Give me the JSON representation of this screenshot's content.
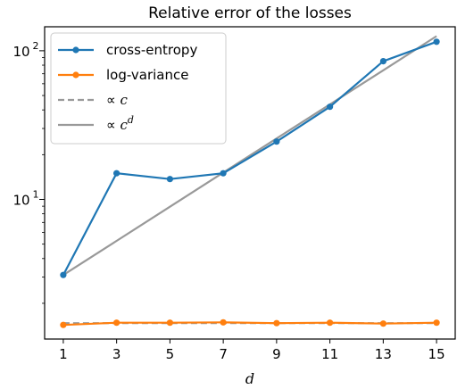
{
  "chart_data": {
    "type": "line",
    "title": "Relative error of the losses",
    "xlabel": "d",
    "ylabel": "",
    "x": [
      1,
      3,
      5,
      7,
      9,
      11,
      13,
      15
    ],
    "xticks": [
      "1",
      "3",
      "5",
      "7",
      "9",
      "11",
      "13",
      "15"
    ],
    "yscale": "log",
    "ylim": [
      1.15,
      145
    ],
    "yticks": [
      {
        "base": "10",
        "exp": "1",
        "value": 10
      },
      {
        "base": "10",
        "exp": "2",
        "value": 100
      }
    ],
    "grid": false,
    "legend_position": "top-left",
    "series": [
      {
        "name": "cross-entropy",
        "color": "#1f77b4",
        "style": "solid-markers",
        "values": [
          3.1,
          15.0,
          13.7,
          15.0,
          24.5,
          42.0,
          85.0,
          115.0
        ]
      },
      {
        "name": "log-variance",
        "color": "#ff7f0e",
        "style": "solid-markers",
        "values": [
          1.43,
          1.48,
          1.48,
          1.49,
          1.47,
          1.48,
          1.46,
          1.48
        ]
      },
      {
        "name": "∝ c",
        "color": "#999999",
        "style": "dashed",
        "values": [
          1.47,
          1.47,
          1.47,
          1.47,
          1.47,
          1.47,
          1.47,
          1.47
        ]
      },
      {
        "name": "∝ c^d",
        "legend_base": "∝ c",
        "legend_sup": "d",
        "color": "#999999",
        "style": "solid",
        "values": [
          3.1,
          5.26,
          8.93,
          15.15,
          25.7,
          43.6,
          73.9,
          125.4
        ]
      }
    ]
  }
}
